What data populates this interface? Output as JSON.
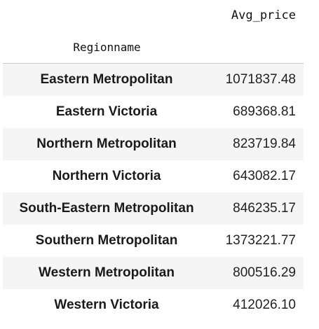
{
  "table": {
    "value_header": "Avg_price",
    "index_header": "Regionname",
    "rows": [
      {
        "region": "Eastern Metropolitan",
        "avg_price": "1071837.48"
      },
      {
        "region": "Eastern Victoria",
        "avg_price": "689368.81"
      },
      {
        "region": "Northern Metropolitan",
        "avg_price": "823719.84"
      },
      {
        "region": "Northern Victoria",
        "avg_price": "643082.17"
      },
      {
        "region": "South-Eastern Metropolitan",
        "avg_price": "846235.17"
      },
      {
        "region": "Southern Metropolitan",
        "avg_price": "1373221.77"
      },
      {
        "region": "Western Metropolitan",
        "avg_price": "800516.29"
      },
      {
        "region": "Western Victoria",
        "avg_price": "412026.10"
      }
    ]
  }
}
